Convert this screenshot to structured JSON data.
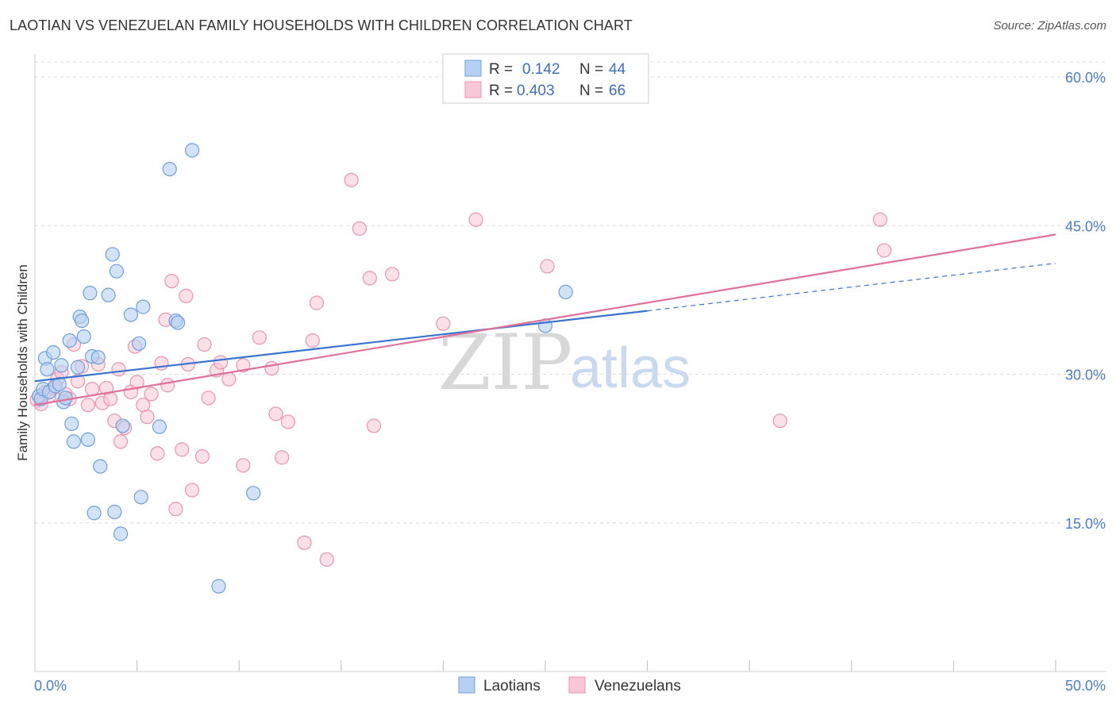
{
  "title": "LAOTIAN VS VENEZUELAN FAMILY HOUSEHOLDS WITH CHILDREN CORRELATION CHART",
  "source": "Source: ZipAtlas.com",
  "watermark": {
    "zip": "ZIP",
    "atlas": "atlas"
  },
  "legend": {
    "laotian": {
      "r_label": "R =",
      "r_value": "0.142",
      "n_label": "N =",
      "n_value": "44"
    },
    "venezuelan": {
      "r_label": "R =",
      "r_value": "0.403",
      "n_label": "N =",
      "n_value": "66"
    }
  },
  "bottom_legend": {
    "laotian": "Laotians",
    "venezuelan": "Venezuelans"
  },
  "colors": {
    "laotian_fill": "#b6d0f2",
    "laotian_stroke": "#6f9fd8",
    "laotian_line": "#3b74d0",
    "venezuelan_fill": "#f8c6d6",
    "venezuelan_stroke": "#e994b0",
    "venezuelan_line": "#e0709a",
    "tick_label": "#4a7cc9",
    "grid": "#dddddd"
  },
  "chart_data": {
    "type": "scatter",
    "title": "LAOTIAN VS VENEZUELAN FAMILY HOUSEHOLDS WITH CHILDREN CORRELATION CHART",
    "xlabel": "",
    "ylabel": "Family Households with Children",
    "xlim": [
      0,
      50
    ],
    "ylim": [
      0,
      63
    ],
    "x_tick_labels": [
      "0.0%",
      "50.0%"
    ],
    "y_ticks": [
      15,
      30,
      45,
      60
    ],
    "y_tick_labels": [
      "15.0%",
      "30.0%",
      "45.0%",
      "60.0%"
    ],
    "grid": true,
    "legend_placement": "top-center",
    "series": [
      {
        "name": "Laotians",
        "r": 0.142,
        "n": 44,
        "trend": {
          "x0": 0,
          "y0": 29.3,
          "x1": 30,
          "y1": 36.4,
          "dashed_to_x": 50,
          "dashed_to_y": 41.2
        },
        "points": [
          [
            0.2,
            27.8
          ],
          [
            0.3,
            27.5
          ],
          [
            0.4,
            28.5
          ],
          [
            0.5,
            31.6
          ],
          [
            0.6,
            30.5
          ],
          [
            0.7,
            28.2
          ],
          [
            0.9,
            32.2
          ],
          [
            1.0,
            28.8
          ],
          [
            1.2,
            29.0
          ],
          [
            1.3,
            30.9
          ],
          [
            1.4,
            27.2
          ],
          [
            1.5,
            27.6
          ],
          [
            1.7,
            33.4
          ],
          [
            1.8,
            25.0
          ],
          [
            1.9,
            23.2
          ],
          [
            2.1,
            30.7
          ],
          [
            2.2,
            35.8
          ],
          [
            2.3,
            35.4
          ],
          [
            2.4,
            33.8
          ],
          [
            2.6,
            23.4
          ],
          [
            2.7,
            38.2
          ],
          [
            2.8,
            31.8
          ],
          [
            2.9,
            16.0
          ],
          [
            3.1,
            31.7
          ],
          [
            3.2,
            20.7
          ],
          [
            3.6,
            38.0
          ],
          [
            3.8,
            42.1
          ],
          [
            3.9,
            16.1
          ],
          [
            4.0,
            40.4
          ],
          [
            4.2,
            13.9
          ],
          [
            4.3,
            24.8
          ],
          [
            4.7,
            36.0
          ],
          [
            5.1,
            33.1
          ],
          [
            5.2,
            17.6
          ],
          [
            5.3,
            36.8
          ],
          [
            6.1,
            24.7
          ],
          [
            6.6,
            50.7
          ],
          [
            6.9,
            35.4
          ],
          [
            7.0,
            35.2
          ],
          [
            7.7,
            52.6
          ],
          [
            9.0,
            8.6
          ],
          [
            10.7,
            18.0
          ],
          [
            25.0,
            34.9
          ],
          [
            26.0,
            38.3
          ]
        ]
      },
      {
        "name": "Venezuelans",
        "r": 0.403,
        "n": 66,
        "trend": {
          "x0": 0,
          "y0": 26.9,
          "x1": 50,
          "y1": 44.1
        },
        "points": [
          [
            0.1,
            27.4
          ],
          [
            0.3,
            27.0
          ],
          [
            0.5,
            28.2
          ],
          [
            0.7,
            27.8
          ],
          [
            0.9,
            28.6
          ],
          [
            1.1,
            29.5
          ],
          [
            1.3,
            30.2
          ],
          [
            1.5,
            28.0
          ],
          [
            1.7,
            27.5
          ],
          [
            1.9,
            33.0
          ],
          [
            2.1,
            29.3
          ],
          [
            2.3,
            30.8
          ],
          [
            2.6,
            26.9
          ],
          [
            2.8,
            28.5
          ],
          [
            3.1,
            31.0
          ],
          [
            3.3,
            27.1
          ],
          [
            3.5,
            28.6
          ],
          [
            3.7,
            27.5
          ],
          [
            3.9,
            25.3
          ],
          [
            4.1,
            30.5
          ],
          [
            4.2,
            23.2
          ],
          [
            4.4,
            24.6
          ],
          [
            4.7,
            28.2
          ],
          [
            4.9,
            32.8
          ],
          [
            5.0,
            29.2
          ],
          [
            5.3,
            26.9
          ],
          [
            5.5,
            25.7
          ],
          [
            5.7,
            28.0
          ],
          [
            6.0,
            22.0
          ],
          [
            6.2,
            31.1
          ],
          [
            6.4,
            35.5
          ],
          [
            6.5,
            28.9
          ],
          [
            6.7,
            39.4
          ],
          [
            6.9,
            16.4
          ],
          [
            7.2,
            22.4
          ],
          [
            7.4,
            37.9
          ],
          [
            7.5,
            31.0
          ],
          [
            7.7,
            18.3
          ],
          [
            8.2,
            21.7
          ],
          [
            8.3,
            33.0
          ],
          [
            8.5,
            27.6
          ],
          [
            8.9,
            30.4
          ],
          [
            9.1,
            31.2
          ],
          [
            9.5,
            29.5
          ],
          [
            10.2,
            30.9
          ],
          [
            10.2,
            20.8
          ],
          [
            11.0,
            33.7
          ],
          [
            11.6,
            30.6
          ],
          [
            11.8,
            26.0
          ],
          [
            12.1,
            21.6
          ],
          [
            12.4,
            25.2
          ],
          [
            13.2,
            13.0
          ],
          [
            13.6,
            33.4
          ],
          [
            13.8,
            37.2
          ],
          [
            14.3,
            11.3
          ],
          [
            15.5,
            49.6
          ],
          [
            15.9,
            44.7
          ],
          [
            16.4,
            39.7
          ],
          [
            16.6,
            24.8
          ],
          [
            17.5,
            40.1
          ],
          [
            20.0,
            35.1
          ],
          [
            21.6,
            45.6
          ],
          [
            25.1,
            40.9
          ],
          [
            36.5,
            25.3
          ],
          [
            41.4,
            45.6
          ],
          [
            41.6,
            42.5
          ]
        ]
      }
    ]
  }
}
